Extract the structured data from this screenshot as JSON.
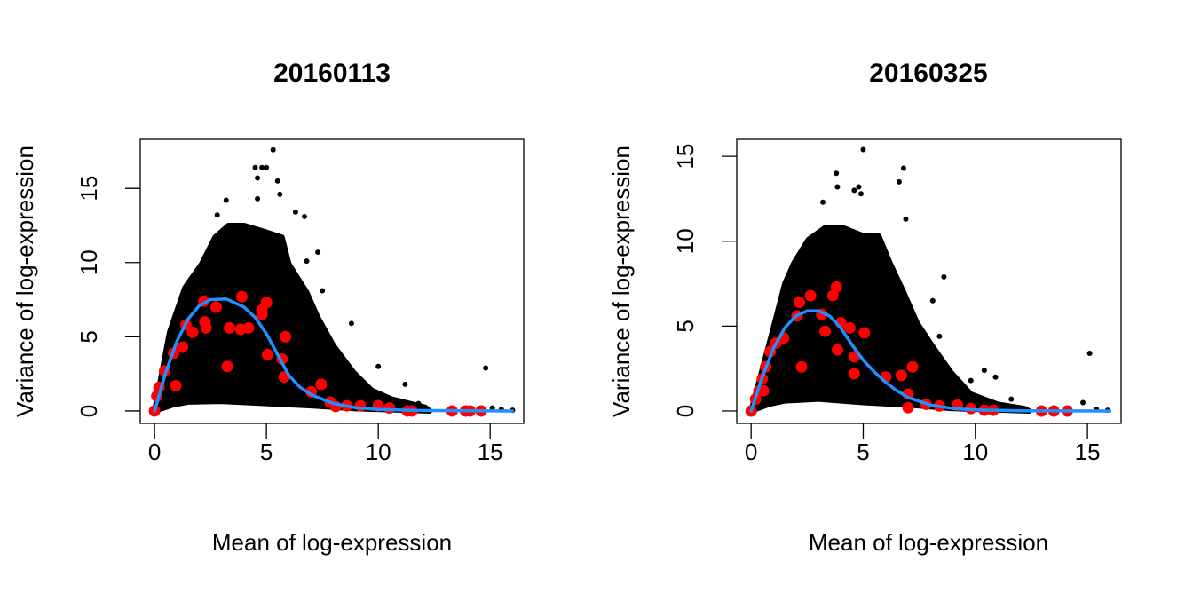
{
  "chart_data": [
    {
      "type": "scatter",
      "title": "20160113",
      "xlabel": "Mean of log-expression",
      "ylabel": "Variance of log-expression",
      "xlim": [
        -0.64,
        16.5
      ],
      "ylim": [
        -0.84,
        18.3
      ],
      "xticks": [
        0,
        5,
        10,
        15
      ],
      "yticks": [
        0,
        5,
        10,
        15
      ],
      "grid": false,
      "colors": {
        "points": "#000000",
        "highlight": "#FF0000",
        "trend": "#1E90FF"
      },
      "cloud_upper_envelope": [
        [
          0,
          0
        ],
        [
          0.67,
          5.3
        ],
        [
          1.35,
          8.3
        ],
        [
          2.1,
          9.9
        ],
        [
          2.7,
          11.7
        ],
        [
          3.3,
          12.5
        ],
        [
          4.0,
          12.5
        ],
        [
          4.9,
          12.1
        ],
        [
          5.7,
          11.7
        ],
        [
          6.0,
          9.9
        ],
        [
          6.8,
          8.0
        ],
        [
          7.3,
          6.3
        ],
        [
          8.0,
          4.4
        ],
        [
          8.9,
          2.6
        ],
        [
          9.7,
          1.4
        ],
        [
          10.6,
          0.8
        ],
        [
          12.1,
          0.25
        ],
        [
          12.3,
          0
        ]
      ],
      "cloud_lower_envelope": [
        [
          0,
          0
        ],
        [
          0.8,
          0.4
        ],
        [
          1.5,
          0.6
        ],
        [
          3,
          0.65
        ],
        [
          5,
          0.5
        ],
        [
          7,
          0.35
        ],
        [
          9,
          0.15
        ],
        [
          12.3,
          0
        ]
      ],
      "points": [
        [
          5.3,
          17.6
        ],
        [
          4.5,
          16.4
        ],
        [
          4.8,
          16.4
        ],
        [
          5.0,
          16.4
        ],
        [
          4.6,
          15.7
        ],
        [
          5.5,
          15.5
        ],
        [
          5.6,
          14.6
        ],
        [
          4.6,
          14.3
        ],
        [
          3.2,
          14.2
        ],
        [
          6.3,
          13.4
        ],
        [
          6.7,
          13.1
        ],
        [
          2.8,
          13.2
        ],
        [
          7.3,
          10.7
        ],
        [
          6.8,
          10.1
        ],
        [
          7.5,
          8.1
        ],
        [
          8.8,
          5.9
        ],
        [
          10.0,
          3.0
        ],
        [
          14.8,
          2.9
        ],
        [
          11.2,
          1.8
        ],
        [
          16.0,
          0.05
        ],
        [
          15.5,
          0.1
        ],
        [
          15.1,
          0.2
        ],
        [
          12.2,
          0.1
        ],
        [
          11.8,
          0.5
        ]
      ],
      "highlighted_points": [
        [
          0,
          0
        ],
        [
          0.1,
          1.0
        ],
        [
          0.2,
          1.6
        ],
        [
          0.45,
          2.7
        ],
        [
          0.85,
          3.9
        ],
        [
          1.25,
          4.3
        ],
        [
          0.95,
          1.7
        ],
        [
          1.4,
          5.8
        ],
        [
          1.7,
          5.3
        ],
        [
          2.2,
          7.4
        ],
        [
          2.75,
          7.0
        ],
        [
          2.25,
          6.0
        ],
        [
          2.3,
          5.6
        ],
        [
          3.9,
          7.7
        ],
        [
          3.35,
          5.6
        ],
        [
          3.85,
          5.5
        ],
        [
          4.2,
          5.6
        ],
        [
          3.25,
          3.0
        ],
        [
          5.0,
          7.3
        ],
        [
          4.8,
          6.8
        ],
        [
          4.8,
          6.5
        ],
        [
          5.85,
          5.0
        ],
        [
          5.05,
          3.8
        ],
        [
          5.7,
          3.5
        ],
        [
          5.8,
          2.3
        ],
        [
          7.45,
          1.8
        ],
        [
          7.0,
          1.3
        ],
        [
          7.85,
          0.6
        ],
        [
          8.1,
          0.3
        ],
        [
          8.6,
          0.35
        ],
        [
          9.2,
          0.35
        ],
        [
          10.0,
          0.35
        ],
        [
          10.5,
          0.2
        ],
        [
          11.3,
          0
        ],
        [
          11.5,
          0
        ],
        [
          13.3,
          0
        ],
        [
          13.9,
          0
        ],
        [
          14.1,
          0
        ],
        [
          14.6,
          0
        ]
      ],
      "trend": [
        [
          0,
          0
        ],
        [
          0.5,
          2.6
        ],
        [
          1,
          4.7
        ],
        [
          1.5,
          6.2
        ],
        [
          2,
          7.1
        ],
        [
          2.5,
          7.5
        ],
        [
          3.2,
          7.55
        ],
        [
          4,
          7.0
        ],
        [
          4.5,
          6.3
        ],
        [
          5,
          5.2
        ],
        [
          5.5,
          3.8
        ],
        [
          6,
          2.4
        ],
        [
          6.5,
          1.6
        ],
        [
          7,
          1.1
        ],
        [
          8,
          0.5
        ],
        [
          9,
          0.22
        ],
        [
          10,
          0.1
        ],
        [
          12,
          0.03
        ],
        [
          16,
          0
        ]
      ]
    },
    {
      "type": "scatter",
      "title": "20160325",
      "xlabel": "Mean of log-expression",
      "ylabel": "Variance of log-expression",
      "xlim": [
        -0.64,
        16.5
      ],
      "ylim": [
        -0.73,
        16.0
      ],
      "xticks": [
        0,
        5,
        10,
        15
      ],
      "yticks": [
        0,
        5,
        10,
        15
      ],
      "grid": false,
      "colors": {
        "points": "#000000",
        "highlight": "#FF0000",
        "trend": "#1E90FF"
      },
      "cloud_upper_envelope": [
        [
          0,
          0
        ],
        [
          0.95,
          4.7
        ],
        [
          1.5,
          7.5
        ],
        [
          1.9,
          8.7
        ],
        [
          2.55,
          10.1
        ],
        [
          3.3,
          10.8
        ],
        [
          4.1,
          10.8
        ],
        [
          5.05,
          10.3
        ],
        [
          5.7,
          10.3
        ],
        [
          6.2,
          8.7
        ],
        [
          6.8,
          7.0
        ],
        [
          7.4,
          5.2
        ],
        [
          8.1,
          3.8
        ],
        [
          8.9,
          2.3
        ],
        [
          9.8,
          1.0
        ],
        [
          11,
          0.4
        ],
        [
          12.2,
          0.15
        ],
        [
          12.4,
          0
        ]
      ],
      "cloud_lower_envelope": [
        [
          0,
          0
        ],
        [
          0.8,
          0.4
        ],
        [
          1.5,
          0.6
        ],
        [
          3,
          0.7
        ],
        [
          5,
          0.5
        ],
        [
          7,
          0.35
        ],
        [
          9,
          0.15
        ],
        [
          12.4,
          0
        ]
      ],
      "points": [
        [
          5.0,
          15.4
        ],
        [
          6.8,
          14.3
        ],
        [
          3.8,
          14.0
        ],
        [
          6.6,
          13.5
        ],
        [
          3.85,
          13.2
        ],
        [
          4.8,
          13.2
        ],
        [
          4.6,
          13.0
        ],
        [
          4.9,
          12.8
        ],
        [
          3.2,
          12.3
        ],
        [
          6.9,
          11.3
        ],
        [
          8.6,
          7.9
        ],
        [
          8.1,
          6.5
        ],
        [
          15.1,
          3.4
        ],
        [
          10.4,
          2.4
        ],
        [
          10.9,
          2.0
        ],
        [
          14.8,
          0.5
        ],
        [
          15.4,
          0.1
        ],
        [
          15.9,
          0.05
        ],
        [
          8.4,
          4.4
        ],
        [
          9.8,
          1.8
        ],
        [
          11.6,
          0.7
        ]
      ],
      "highlighted_points": [
        [
          0,
          0
        ],
        [
          0.2,
          0.7
        ],
        [
          0.35,
          1.2
        ],
        [
          0.5,
          1.9
        ],
        [
          0.65,
          2.6
        ],
        [
          0.85,
          3.5
        ],
        [
          1.1,
          4.0
        ],
        [
          1.45,
          4.3
        ],
        [
          0.55,
          1.2
        ],
        [
          2.15,
          6.4
        ],
        [
          2.65,
          6.8
        ],
        [
          2.05,
          5.6
        ],
        [
          3.8,
          7.3
        ],
        [
          3.65,
          6.8
        ],
        [
          3.15,
          5.7
        ],
        [
          3.3,
          4.7
        ],
        [
          4.0,
          5.2
        ],
        [
          4.4,
          4.9
        ],
        [
          5.05,
          4.6
        ],
        [
          2.25,
          2.6
        ],
        [
          3.85,
          3.6
        ],
        [
          4.6,
          3.2
        ],
        [
          4.6,
          2.2
        ],
        [
          6.0,
          2.0
        ],
        [
          6.7,
          2.1
        ],
        [
          7.2,
          2.6
        ],
        [
          7.0,
          1.0
        ],
        [
          7.0,
          0.2
        ],
        [
          7.8,
          0.4
        ],
        [
          8.4,
          0.3
        ],
        [
          9.2,
          0.35
        ],
        [
          9.8,
          0.15
        ],
        [
          10.4,
          0.05
        ],
        [
          10.8,
          0.05
        ],
        [
          12.95,
          0
        ],
        [
          13.5,
          0
        ],
        [
          14.1,
          0
        ]
      ],
      "trend": [
        [
          0,
          0
        ],
        [
          0.5,
          2.0
        ],
        [
          1,
          3.7
        ],
        [
          1.5,
          4.9
        ],
        [
          2,
          5.6
        ],
        [
          2.5,
          5.9
        ],
        [
          3,
          5.9
        ],
        [
          3.5,
          5.6
        ],
        [
          4,
          4.9
        ],
        [
          4.5,
          3.9
        ],
        [
          5,
          3.0
        ],
        [
          5.5,
          2.3
        ],
        [
          6,
          1.7
        ],
        [
          6.5,
          1.2
        ],
        [
          7,
          0.8
        ],
        [
          8,
          0.35
        ],
        [
          9,
          0.15
        ],
        [
          10,
          0.07
        ],
        [
          12,
          0.02
        ],
        [
          16,
          0
        ]
      ]
    }
  ]
}
